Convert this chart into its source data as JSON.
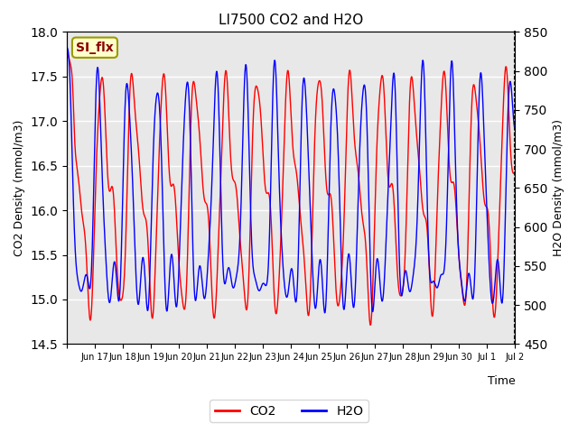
{
  "title": "LI7500 CO2 and H2O",
  "xlabel": "Time",
  "ylabel_left": "CO2 Density (mmol/m3)",
  "ylabel_right": "H2O Density (mmol/m3)",
  "co2_ylim": [
    14.5,
    18.0
  ],
  "h2o_ylim": [
    450,
    850
  ],
  "co2_color": "red",
  "h2o_color": "blue",
  "co2_label": "CO2",
  "h2o_label": "H2O",
  "annotation_text": "SI_flx",
  "annotation_bg": "#ffffcc",
  "annotation_border": "#999900",
  "background_color": "#e8e8e8",
  "grid_color": "white",
  "x_tick_labels": [
    "Jun 17",
    "Jun 18",
    "Jun 19",
    "Jun 20",
    "Jun 21",
    "Jun 22",
    "Jun 23",
    "Jun 24",
    "Jun 25",
    "Jun 26",
    "Jun 27",
    "Jun 28",
    "Jun 29",
    "Jun 30",
    "Jul 1",
    "Jul 2"
  ],
  "n_points": 2000,
  "seed": 42
}
